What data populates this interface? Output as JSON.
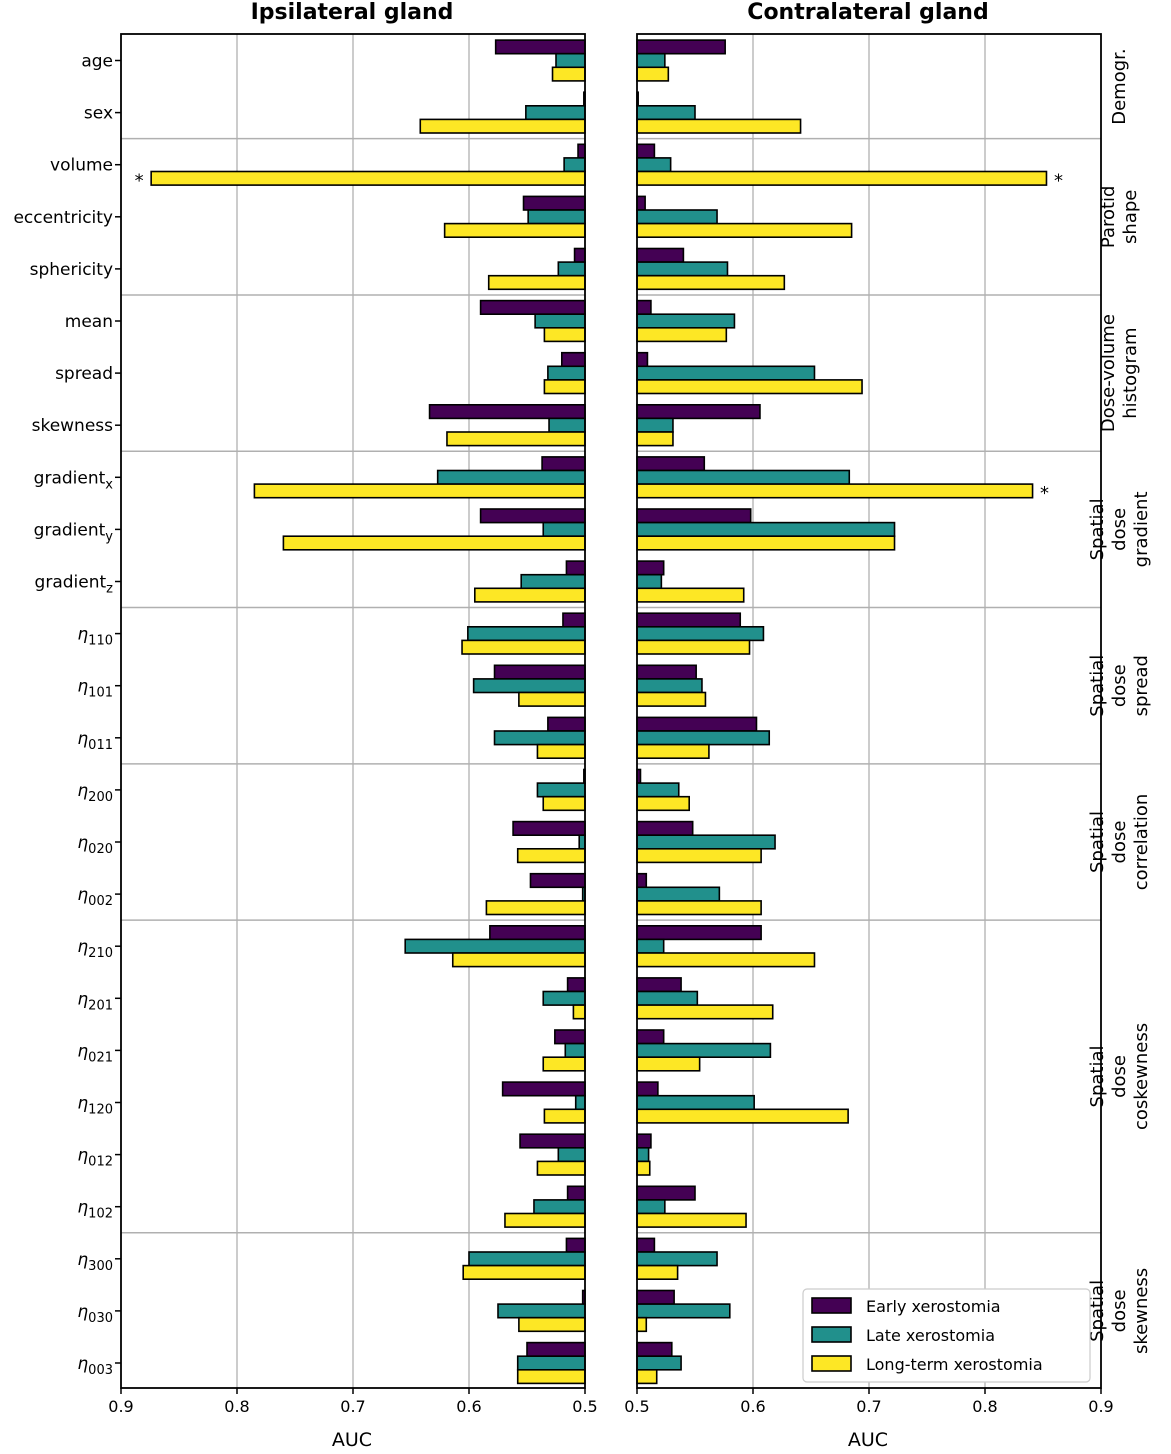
{
  "chart_data": {
    "type": "bar",
    "orientation": "horizontal",
    "xlabel": "AUC",
    "xlim_reversed": [
      0.9,
      0.5
    ],
    "xlim": [
      0.5,
      0.9
    ],
    "xticks": [
      "0.9",
      "0.8",
      "0.7",
      "0.6",
      "0.5"
    ],
    "xticks_right": [
      "0.5",
      "0.6",
      "0.7",
      "0.8",
      "0.9"
    ],
    "grid": true,
    "significance_marker": "*",
    "legend_position": "lower-right",
    "colors": {
      "early": "#440154",
      "late": "#21908c",
      "long": "#fde725"
    },
    "series_names": [
      "Early xerostomia",
      "Late xerostomia",
      "Long-term xerostomia"
    ],
    "features": [
      {
        "base": "age",
        "sub": "",
        "italic": false
      },
      {
        "base": "sex",
        "sub": "",
        "italic": false
      },
      {
        "base": "volume",
        "sub": "",
        "italic": false
      },
      {
        "base": "eccentricity",
        "sub": "",
        "italic": false
      },
      {
        "base": "sphericity",
        "sub": "",
        "italic": false
      },
      {
        "base": "mean",
        "sub": "",
        "italic": false
      },
      {
        "base": "spread",
        "sub": "",
        "italic": false
      },
      {
        "base": "skewness",
        "sub": "",
        "italic": false
      },
      {
        "base": "gradient",
        "sub": "x",
        "italic": false
      },
      {
        "base": "gradient",
        "sub": "y",
        "italic": false
      },
      {
        "base": "gradient",
        "sub": "z",
        "italic": false
      },
      {
        "base": "η",
        "sub": "110",
        "italic": true
      },
      {
        "base": "η",
        "sub": "101",
        "italic": true
      },
      {
        "base": "η",
        "sub": "011",
        "italic": true
      },
      {
        "base": "η",
        "sub": "200",
        "italic": true
      },
      {
        "base": "η",
        "sub": "020",
        "italic": true
      },
      {
        "base": "η",
        "sub": "002",
        "italic": true
      },
      {
        "base": "η",
        "sub": "210",
        "italic": true
      },
      {
        "base": "η",
        "sub": "201",
        "italic": true
      },
      {
        "base": "η",
        "sub": "021",
        "italic": true
      },
      {
        "base": "η",
        "sub": "120",
        "italic": true
      },
      {
        "base": "η",
        "sub": "012",
        "italic": true
      },
      {
        "base": "η",
        "sub": "102",
        "italic": true
      },
      {
        "base": "η",
        "sub": "300",
        "italic": true
      },
      {
        "base": "η",
        "sub": "030",
        "italic": true
      },
      {
        "base": "η",
        "sub": "003",
        "italic": true
      }
    ],
    "groups": [
      {
        "lines": [
          "Demogr."
        ],
        "start": 0,
        "end": 1
      },
      {
        "lines": [
          "Parotid",
          "shape"
        ],
        "start": 2,
        "end": 4
      },
      {
        "lines": [
          "Dose-volume",
          "histogram"
        ],
        "start": 5,
        "end": 7
      },
      {
        "lines": [
          "Spatial",
          "dose",
          "gradient"
        ],
        "start": 8,
        "end": 10
      },
      {
        "lines": [
          "Spatial",
          "dose",
          "spread"
        ],
        "start": 11,
        "end": 13
      },
      {
        "lines": [
          "Spatial",
          "dose",
          "correlation"
        ],
        "start": 14,
        "end": 16
      },
      {
        "lines": [
          "Spatial",
          "dose",
          "coskewness"
        ],
        "start": 17,
        "end": 22
      },
      {
        "lines": [
          "Spatial",
          "dose",
          "skewness"
        ],
        "start": 23,
        "end": 25
      }
    ],
    "panels": [
      {
        "title": "Ipsilateral gland",
        "reversed": true,
        "series": [
          {
            "name": "Early xerostomia",
            "values": [
              0.577,
              0.501,
              0.506,
              0.553,
              0.509,
              0.59,
              0.52,
              0.634,
              0.537,
              0.59,
              0.516,
              0.519,
              0.578,
              0.532,
              0.501,
              0.562,
              0.547,
              0.582,
              0.515,
              0.526,
              0.571,
              0.556,
              0.515,
              0.516,
              0.502,
              0.55
            ]
          },
          {
            "name": "Late xerostomia",
            "values": [
              0.525,
              0.551,
              0.518,
              0.549,
              0.523,
              0.543,
              0.532,
              0.531,
              0.627,
              0.536,
              0.555,
              0.601,
              0.596,
              0.578,
              0.541,
              0.505,
              0.502,
              0.655,
              0.536,
              0.517,
              0.508,
              0.523,
              0.544,
              0.6,
              0.575,
              0.558
            ]
          },
          {
            "name": "Long-term xerostomia",
            "values": [
              0.528,
              0.642,
              0.874,
              0.621,
              0.583,
              0.535,
              0.535,
              0.619,
              0.785,
              0.76,
              0.595,
              0.606,
              0.557,
              0.541,
              0.536,
              0.558,
              0.585,
              0.614,
              0.51,
              0.536,
              0.535,
              0.541,
              0.569,
              0.605,
              0.557,
              0.558
            ]
          }
        ],
        "significant": [
          {
            "feature": "volume",
            "series": "Long-term xerostomia"
          }
        ]
      },
      {
        "title": "Contralateral gland",
        "reversed": false,
        "series": [
          {
            "name": "Early xerostomia",
            "values": [
              0.576,
              0.501,
              0.515,
              0.507,
              0.54,
              0.512,
              0.509,
              0.606,
              0.558,
              0.598,
              0.523,
              0.589,
              0.551,
              0.603,
              0.503,
              0.548,
              0.508,
              0.607,
              0.538,
              0.523,
              0.518,
              0.512,
              0.55,
              0.515,
              0.532,
              0.53
            ]
          },
          {
            "name": "Late xerostomia",
            "values": [
              0.524,
              0.55,
              0.529,
              0.569,
              0.578,
              0.584,
              0.653,
              0.531,
              0.683,
              0.722,
              0.521,
              0.609,
              0.556,
              0.614,
              0.536,
              0.619,
              0.571,
              0.523,
              0.552,
              0.615,
              0.601,
              0.51,
              0.524,
              0.569,
              0.58,
              0.538
            ]
          },
          {
            "name": "Long-term xerostomia",
            "values": [
              0.527,
              0.641,
              0.853,
              0.685,
              0.627,
              0.577,
              0.694,
              0.531,
              0.841,
              0.722,
              0.592,
              0.597,
              0.559,
              0.562,
              0.545,
              0.607,
              0.607,
              0.653,
              0.617,
              0.554,
              0.682,
              0.511,
              0.594,
              0.535,
              0.508,
              0.517
            ]
          }
        ],
        "significant": [
          {
            "feature": "volume",
            "series": "Long-term xerostomia"
          },
          {
            "feature": "gradient_x",
            "series": "Long-term xerostomia"
          }
        ]
      }
    ]
  }
}
